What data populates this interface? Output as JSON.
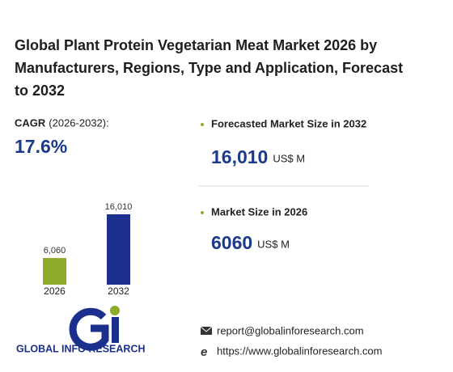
{
  "title": "Global Plant Protein Vegetarian Meat Market 2026 by Manufacturers, Regions, Type and Application, Forecast to 2032",
  "cagr": {
    "label": "CAGR",
    "period": "(2026-2032):",
    "value": "17.6%"
  },
  "forecast": {
    "label": "Forecasted Market Size in 2032",
    "value": "16,010",
    "unit": "US$ M"
  },
  "current": {
    "label": "Market Size in 2026",
    "value": "6060",
    "unit": "US$ M"
  },
  "chart_data": {
    "type": "bar",
    "categories": [
      "2026",
      "2032"
    ],
    "values": [
      6060,
      16010
    ],
    "value_labels": [
      "6,060",
      "16,010"
    ],
    "colors": [
      "#8cac2a",
      "#1b2f8c"
    ]
  },
  "logo": {
    "text": "GLOBAL INFO RESEARCH"
  },
  "contact": {
    "email": "report@globalinforesearch.com",
    "website": "https://www.globalinforesearch.com"
  }
}
